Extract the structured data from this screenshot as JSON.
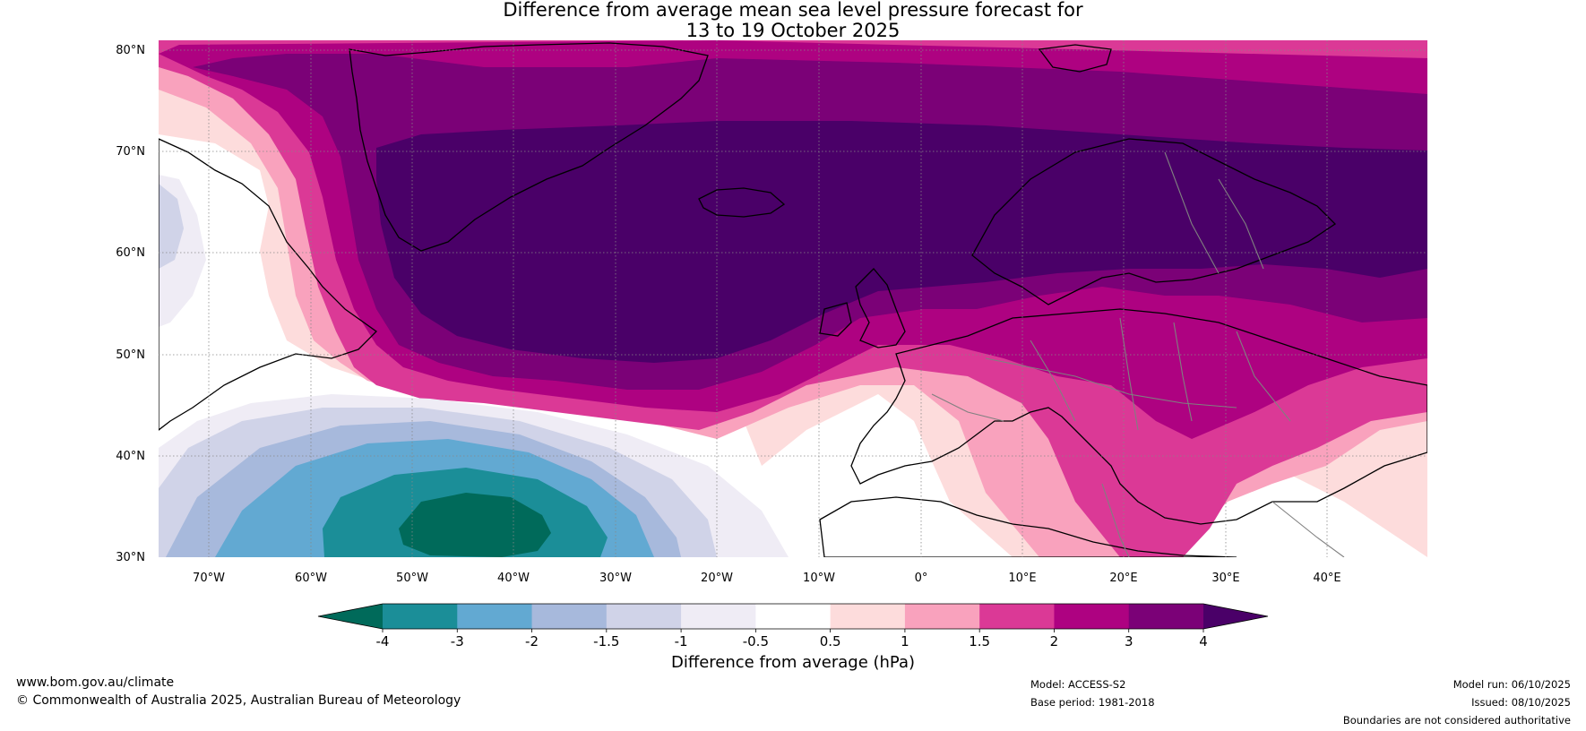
{
  "title": {
    "line1": "Difference from average mean sea level pressure forecast for",
    "line2": "13 to 19 October 2025"
  },
  "axes": {
    "lat_labels": [
      "80°N",
      "70°N",
      "60°N",
      "50°N",
      "40°N",
      "30°N"
    ],
    "lon_labels": [
      "70°W",
      "60°W",
      "50°W",
      "40°W",
      "30°W",
      "20°W",
      "10°W",
      "0°",
      "10°E",
      "20°E",
      "30°E",
      "40°E"
    ]
  },
  "colorbar": {
    "label": "Difference from average (hPa)",
    "ticks": [
      "-4",
      "-3",
      "-2",
      "-1.5",
      "-1",
      "-0.5",
      "0.5",
      "1",
      "1.5",
      "2",
      "3",
      "4"
    ],
    "colors": {
      "lt_-4": "#006a5a",
      "-4_-3": "#1b8e98",
      "-3_-2": "#62a9d2",
      "-2_-1.5": "#a7b9dc",
      "-1.5_-1": "#d0d3e8",
      "-1_-0.5": "#efecf5",
      "-0.5_0.5": "#ffffff",
      "0.5_1": "#fddcdc",
      "1_1.5": "#f9a2bd",
      "1.5_2": "#db3996",
      "2_3": "#ae0281",
      "3_4": "#7b0177",
      "gt_4": "#4a0068"
    }
  },
  "footer": {
    "website": "www.bom.gov.au/climate",
    "copyright": "© Commonwealth of Australia 2025, Australian Bureau of Meteorology",
    "model": "Model: ACCESS-S2",
    "base_period": "Base period: 1981-2018",
    "model_run": "Model run: 06/10/2025",
    "issued": "Issued: 08/10/2025",
    "disclaimer": "Boundaries are not considered authoritative"
  }
}
